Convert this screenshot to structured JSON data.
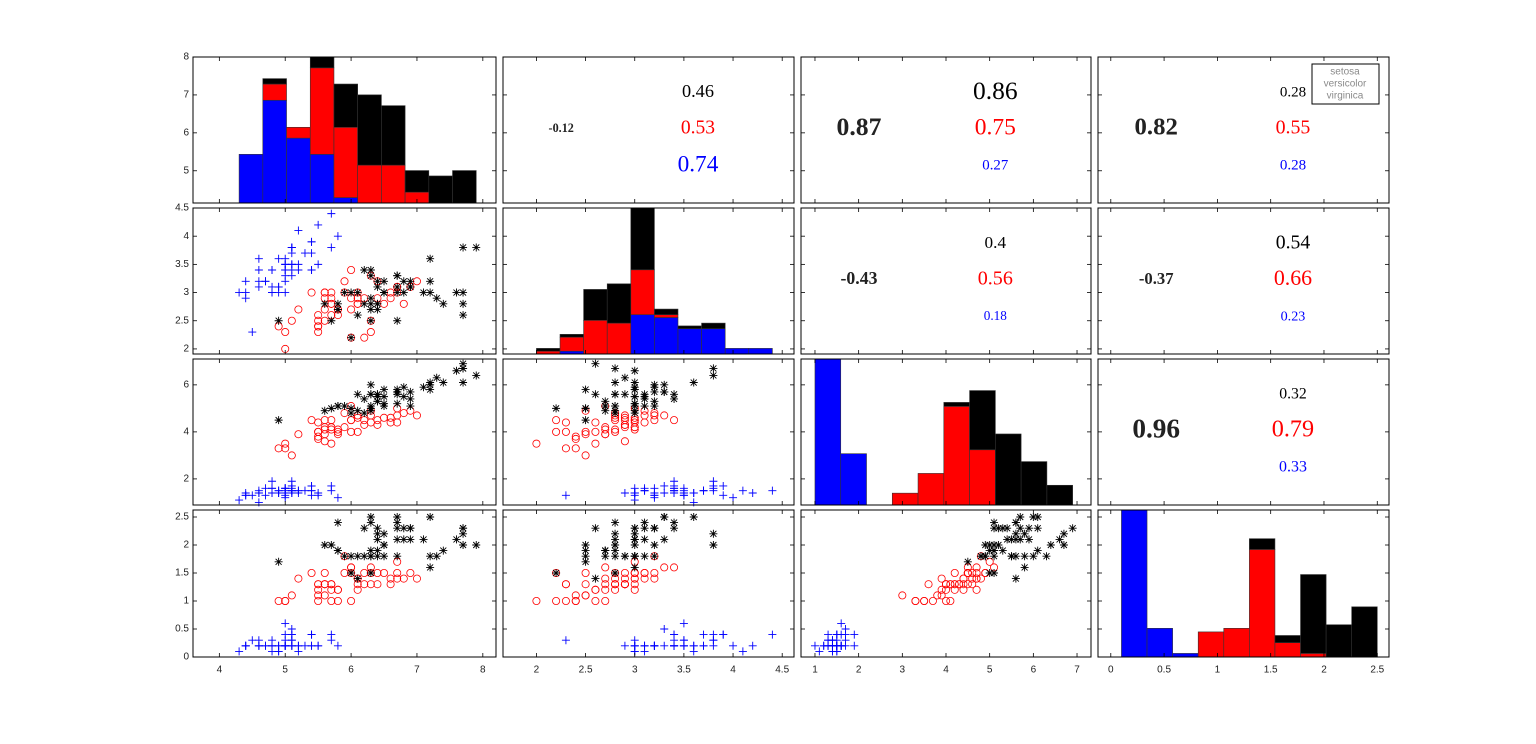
{
  "chart_data": {
    "type": "scatter-matrix",
    "variables": [
      {
        "xlim": [
          3.6,
          8.2
        ],
        "ylim": [
          4.15,
          8.0
        ],
        "xticks": [
          4,
          5,
          6,
          7,
          8
        ],
        "yticks": [
          5,
          6,
          7,
          8
        ],
        "bins": [
          4.3,
          4.66,
          5.02,
          5.38,
          5.74,
          6.1,
          6.46,
          6.82,
          7.18,
          7.54,
          7.9
        ]
      },
      {
        "xlim": [
          1.66,
          4.62
        ],
        "ylim": [
          1.91,
          4.5
        ],
        "xticks": [
          2,
          2.5,
          3,
          3.5,
          4,
          4.5
        ],
        "yticks": [
          2,
          2.5,
          3,
          3.5,
          4,
          4.5
        ],
        "bins": [
          2.0,
          2.24,
          2.48,
          2.72,
          2.96,
          3.2,
          3.44,
          3.68,
          3.92,
          4.16,
          4.4
        ]
      },
      {
        "xlim": [
          0.68,
          7.32
        ],
        "ylim": [
          0.89,
          7.1
        ],
        "xticks": [
          1,
          2,
          3,
          4,
          5,
          6,
          7
        ],
        "yticks": [
          2,
          4,
          6
        ],
        "bins": [
          1.0,
          1.59,
          2.18,
          2.77,
          3.36,
          3.95,
          4.54,
          5.13,
          5.72,
          6.31,
          6.9
        ]
      },
      {
        "xlim": [
          -0.12,
          2.61
        ],
        "ylim": [
          0,
          2.625
        ],
        "xticks": [
          0,
          0.5,
          1,
          1.5,
          2,
          2.5
        ],
        "yticks": [
          0,
          0.5,
          1,
          1.5,
          2,
          2.5
        ],
        "bins": [
          0.1,
          0.34,
          0.58,
          0.82,
          1.06,
          1.3,
          1.54,
          1.78,
          2.02,
          2.26,
          2.5
        ]
      }
    ],
    "series": [
      {
        "name": "setosa",
        "color": "#0000ff",
        "marker": "+",
        "values": [
          [
            5.1,
            4.9,
            4.7,
            4.6,
            5.0,
            5.4,
            4.6,
            5.0,
            4.4,
            4.9,
            5.4,
            4.8,
            4.8,
            4.3,
            5.8,
            5.7,
            5.4,
            5.1,
            5.7,
            5.1,
            5.4,
            5.1,
            4.6,
            5.1,
            4.8,
            5.0,
            5.0,
            5.2,
            5.2,
            4.7,
            4.8,
            5.4,
            5.2,
            5.5,
            4.9,
            5.0,
            5.5,
            4.9,
            4.4,
            5.1,
            5.0,
            4.5,
            4.4,
            5.0,
            5.1,
            4.8,
            5.1,
            4.6,
            5.3,
            5.0
          ],
          [
            3.5,
            3.0,
            3.2,
            3.1,
            3.6,
            3.9,
            3.4,
            3.4,
            2.9,
            3.1,
            3.7,
            3.4,
            3.0,
            3.0,
            4.0,
            4.4,
            3.9,
            3.5,
            3.8,
            3.8,
            3.4,
            3.7,
            3.6,
            3.3,
            3.4,
            3.0,
            3.4,
            3.5,
            3.4,
            3.2,
            3.1,
            3.4,
            4.1,
            4.2,
            3.1,
            3.2,
            3.5,
            3.6,
            3.0,
            3.4,
            3.5,
            2.3,
            3.2,
            3.5,
            3.8,
            3.0,
            3.8,
            3.2,
            3.7,
            3.3
          ],
          [
            1.4,
            1.4,
            1.3,
            1.5,
            1.4,
            1.7,
            1.4,
            1.5,
            1.4,
            1.5,
            1.5,
            1.6,
            1.4,
            1.1,
            1.2,
            1.5,
            1.3,
            1.4,
            1.7,
            1.5,
            1.7,
            1.5,
            1.0,
            1.7,
            1.9,
            1.6,
            1.6,
            1.5,
            1.4,
            1.6,
            1.6,
            1.5,
            1.5,
            1.4,
            1.5,
            1.2,
            1.3,
            1.4,
            1.3,
            1.5,
            1.3,
            1.3,
            1.3,
            1.6,
            1.9,
            1.4,
            1.6,
            1.4,
            1.5,
            1.4
          ],
          [
            0.2,
            0.2,
            0.2,
            0.2,
            0.2,
            0.4,
            0.3,
            0.2,
            0.2,
            0.1,
            0.2,
            0.2,
            0.1,
            0.1,
            0.2,
            0.4,
            0.4,
            0.3,
            0.3,
            0.3,
            0.2,
            0.4,
            0.2,
            0.5,
            0.2,
            0.2,
            0.4,
            0.2,
            0.2,
            0.2,
            0.2,
            0.4,
            0.1,
            0.2,
            0.2,
            0.2,
            0.2,
            0.1,
            0.2,
            0.2,
            0.3,
            0.3,
            0.2,
            0.6,
            0.4,
            0.3,
            0.2,
            0.2,
            0.2,
            0.2
          ]
        ],
        "hist_counts": [
          [
            9,
            19,
            12,
            9,
            1,
            0,
            0,
            0,
            0,
            0
          ],
          [
            0,
            1,
            0,
            0,
            14,
            13,
            9,
            9,
            2,
            2
          ],
          [
            37,
            13,
            0,
            0,
            0,
            0,
            0,
            0,
            0,
            0
          ],
          [
            41,
            8,
            1,
            0,
            0,
            0,
            0,
            0,
            0,
            0
          ]
        ]
      },
      {
        "name": "versicolor",
        "color": "#ff0000",
        "marker": "o",
        "values": [
          [
            7.0,
            6.4,
            6.9,
            5.5,
            6.5,
            5.7,
            6.3,
            4.9,
            6.6,
            5.2,
            5.0,
            5.9,
            6.0,
            6.1,
            5.6,
            6.7,
            5.6,
            5.8,
            6.2,
            5.6,
            5.9,
            6.1,
            6.3,
            6.1,
            6.4,
            6.6,
            6.8,
            6.7,
            6.0,
            5.7,
            5.5,
            5.5,
            5.8,
            6.0,
            5.4,
            6.0,
            6.7,
            6.3,
            5.6,
            5.5,
            5.5,
            6.1,
            5.8,
            5.0,
            5.6,
            5.7,
            5.7,
            6.2,
            5.1,
            5.7
          ],
          [
            3.2,
            3.2,
            3.1,
            2.3,
            2.8,
            2.8,
            3.3,
            2.4,
            2.9,
            2.7,
            2.0,
            3.0,
            2.2,
            2.9,
            2.9,
            3.1,
            3.0,
            2.7,
            2.2,
            2.5,
            3.2,
            2.8,
            2.5,
            2.8,
            2.9,
            3.0,
            2.8,
            3.0,
            2.9,
            2.6,
            2.4,
            2.4,
            2.7,
            2.7,
            3.0,
            3.4,
            3.1,
            2.3,
            3.0,
            2.5,
            2.6,
            3.0,
            2.6,
            2.3,
            2.7,
            3.0,
            2.9,
            2.9,
            2.5,
            2.8
          ],
          [
            4.7,
            4.5,
            4.9,
            4.0,
            4.6,
            4.5,
            4.7,
            3.3,
            4.6,
            3.9,
            3.5,
            4.2,
            4.0,
            4.7,
            3.6,
            4.4,
            4.5,
            4.1,
            4.5,
            3.9,
            4.8,
            4.0,
            4.9,
            4.7,
            4.3,
            4.4,
            4.8,
            5.0,
            4.5,
            3.5,
            3.8,
            3.7,
            3.9,
            5.1,
            4.5,
            4.5,
            4.7,
            4.4,
            4.1,
            4.0,
            4.4,
            4.6,
            4.0,
            3.3,
            4.2,
            4.2,
            4.2,
            4.3,
            3.0,
            4.1
          ],
          [
            1.4,
            1.5,
            1.5,
            1.3,
            1.5,
            1.3,
            1.6,
            1.0,
            1.3,
            1.4,
            1.0,
            1.5,
            1.0,
            1.4,
            1.3,
            1.4,
            1.5,
            1.0,
            1.5,
            1.1,
            1.8,
            1.3,
            1.5,
            1.2,
            1.3,
            1.4,
            1.4,
            1.7,
            1.5,
            1.0,
            1.1,
            1.0,
            1.2,
            1.6,
            1.5,
            1.6,
            1.5,
            1.3,
            1.3,
            1.3,
            1.2,
            1.4,
            1.2,
            1.0,
            1.3,
            1.2,
            1.3,
            1.3,
            1.1,
            1.3
          ]
        ],
        "hist_counts": [
          [
            0,
            3,
            2,
            16,
            13,
            7,
            7,
            2,
            0,
            0
          ],
          [
            1,
            5,
            12,
            11,
            16,
            1,
            0,
            0,
            0,
            0
          ],
          [
            0,
            0,
            0,
            3,
            8,
            25,
            14,
            0,
            0,
            0
          ],
          [
            0,
            0,
            0,
            7,
            8,
            30,
            4,
            1,
            0,
            0
          ]
        ]
      },
      {
        "name": "virginica",
        "color": "#000000",
        "marker": "*",
        "values": [
          [
            6.3,
            5.8,
            7.1,
            6.3,
            6.5,
            7.6,
            4.9,
            7.3,
            6.7,
            7.2,
            6.5,
            6.4,
            6.8,
            5.7,
            5.8,
            6.4,
            6.5,
            7.7,
            7.7,
            6.0,
            6.9,
            5.6,
            7.7,
            6.3,
            6.7,
            7.2,
            6.2,
            6.1,
            6.4,
            7.2,
            7.4,
            7.9,
            6.4,
            6.3,
            6.1,
            7.7,
            6.3,
            6.4,
            6.0,
            6.9,
            6.7,
            6.9,
            5.8,
            6.8,
            6.7,
            6.7,
            6.3,
            6.5,
            6.2,
            5.9
          ],
          [
            3.3,
            2.7,
            3.0,
            2.9,
            3.0,
            3.0,
            2.5,
            2.9,
            2.5,
            3.6,
            3.2,
            2.7,
            3.0,
            2.5,
            2.8,
            3.2,
            3.0,
            3.8,
            2.6,
            2.2,
            3.2,
            2.8,
            2.8,
            2.7,
            3.3,
            3.2,
            2.8,
            3.0,
            2.8,
            3.0,
            2.8,
            3.8,
            2.8,
            2.8,
            2.6,
            3.0,
            3.4,
            3.1,
            3.0,
            3.1,
            3.1,
            3.1,
            2.7,
            3.2,
            3.3,
            3.0,
            2.5,
            3.0,
            3.4,
            3.0
          ],
          [
            6.0,
            5.1,
            5.9,
            5.6,
            5.8,
            6.6,
            4.5,
            6.3,
            5.8,
            6.1,
            5.1,
            5.3,
            5.5,
            5.0,
            5.1,
            5.3,
            5.5,
            6.7,
            6.9,
            5.0,
            5.7,
            4.9,
            6.7,
            4.9,
            5.7,
            6.0,
            4.8,
            4.9,
            5.6,
            5.8,
            6.1,
            6.4,
            5.6,
            5.1,
            5.6,
            6.1,
            5.6,
            5.5,
            4.8,
            5.4,
            5.6,
            5.1,
            5.1,
            5.9,
            5.7,
            5.2,
            5.0,
            5.2,
            5.4,
            5.1
          ],
          [
            2.5,
            1.9,
            2.1,
            1.8,
            2.2,
            2.1,
            1.7,
            1.8,
            1.8,
            2.5,
            2.0,
            1.9,
            2.1,
            2.0,
            2.4,
            2.3,
            1.8,
            2.2,
            2.3,
            1.5,
            2.3,
            2.0,
            2.0,
            1.8,
            2.1,
            1.8,
            1.8,
            1.8,
            2.1,
            1.6,
            1.9,
            2.0,
            2.2,
            1.5,
            1.4,
            2.3,
            2.4,
            1.8,
            1.8,
            2.1,
            2.4,
            2.3,
            1.9,
            2.3,
            2.5,
            2.3,
            1.9,
            2.0,
            2.3,
            1.8
          ]
        ],
        "hist_counts": [
          [
            0,
            1,
            0,
            2,
            8,
            13,
            11,
            4,
            5,
            6
          ],
          [
            1,
            1,
            11,
            14,
            22,
            2,
            1,
            2,
            0,
            0
          ],
          [
            0,
            0,
            0,
            0,
            0,
            1,
            15,
            18,
            11,
            5
          ],
          [
            0,
            0,
            0,
            0,
            0,
            3,
            2,
            22,
            9,
            14
          ]
        ]
      }
    ],
    "correlations": [
      {
        "overall": -0.12,
        "by_series": [
          0.74,
          0.53,
          0.46
        ]
      },
      {
        "overall": 0.87,
        "by_series": [
          0.27,
          0.75,
          0.86
        ]
      },
      {
        "overall": 0.82,
        "by_series": [
          0.28,
          0.55,
          0.28
        ]
      },
      {
        "overall": -0.43,
        "by_series": [
          0.18,
          0.56,
          0.4
        ]
      },
      {
        "overall": -0.37,
        "by_series": [
          0.23,
          0.66,
          0.54
        ]
      },
      {
        "overall": 0.96,
        "by_series": [
          0.33,
          0.79,
          0.32
        ]
      }
    ]
  }
}
